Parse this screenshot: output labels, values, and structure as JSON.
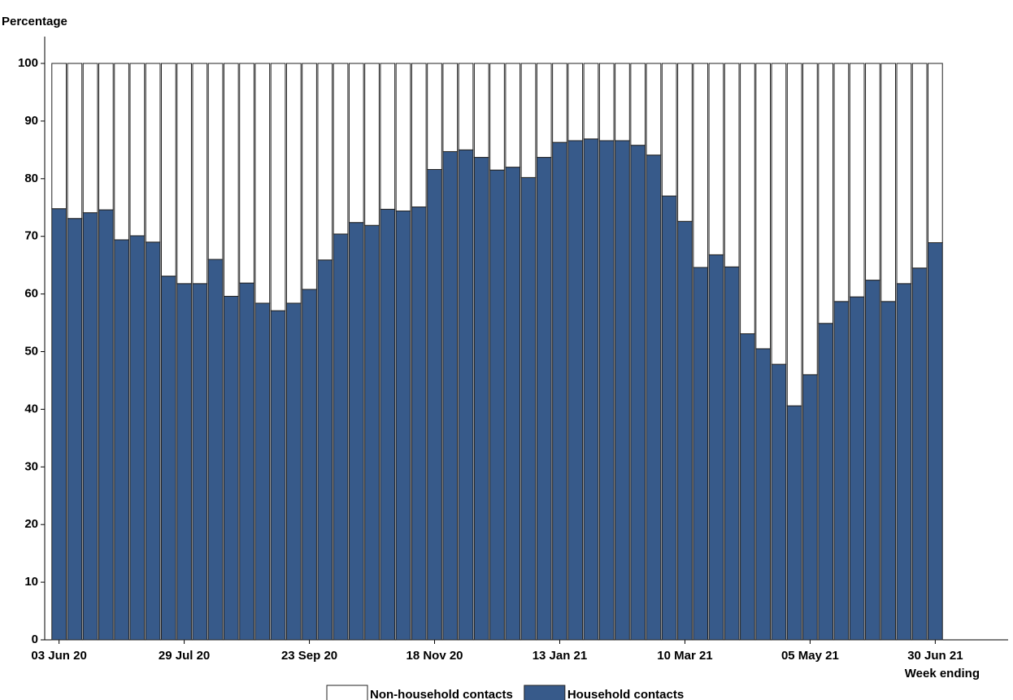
{
  "chart_data": {
    "type": "stacked_bar",
    "y_label": "Percentage",
    "x_label": "Week ending",
    "categories": [
      "03 Jun 20",
      null,
      null,
      null,
      null,
      null,
      null,
      null,
      "29 Jul 20",
      null,
      null,
      null,
      null,
      null,
      null,
      null,
      "23 Sep 20",
      null,
      null,
      null,
      null,
      null,
      null,
      null,
      "18 Nov 20",
      null,
      null,
      null,
      null,
      null,
      null,
      null,
      "13 Jan 21",
      null,
      null,
      null,
      null,
      null,
      null,
      null,
      "10 Mar 21",
      null,
      null,
      null,
      null,
      null,
      null,
      null,
      "05 May 21",
      null,
      null,
      null,
      null,
      null,
      null,
      null,
      "30 Jun 21"
    ],
    "series": [
      {
        "name": "Household contacts",
        "color": "#375a8a",
        "values": [
          74.8,
          73.1,
          74.1,
          74.6,
          69.4,
          70.1,
          69.0,
          63.1,
          61.8,
          61.8,
          66.0,
          59.6,
          61.9,
          58.4,
          57.1,
          58.4,
          60.8,
          65.9,
          70.4,
          72.4,
          71.9,
          74.7,
          74.4,
          75.1,
          81.6,
          84.7,
          85.0,
          83.7,
          81.5,
          82.0,
          80.2,
          83.7,
          86.3,
          86.6,
          86.9,
          86.6,
          86.6,
          85.8,
          84.1,
          77.0,
          72.6,
          64.6,
          66.8,
          64.7,
          53.1,
          50.5,
          47.8,
          40.6,
          46.0,
          54.9,
          58.7,
          59.5,
          62.4,
          58.7,
          61.8,
          64.5,
          68.9
        ]
      },
      {
        "name": "Non-household contacts",
        "color": "#ffffff",
        "values": [
          25.2,
          26.9,
          25.9,
          25.4,
          30.6,
          29.9,
          31.0,
          36.9,
          38.2,
          38.2,
          34.0,
          40.4,
          38.1,
          41.6,
          42.9,
          41.6,
          39.2,
          34.1,
          29.6,
          27.6,
          28.1,
          25.3,
          25.6,
          24.9,
          18.4,
          15.3,
          15.0,
          16.3,
          18.5,
          18.0,
          19.8,
          16.3,
          13.7,
          13.4,
          13.1,
          13.4,
          13.4,
          14.2,
          15.9,
          23.0,
          27.4,
          35.4,
          33.2,
          35.3,
          46.9,
          49.5,
          52.2,
          59.4,
          54.0,
          45.1,
          41.3,
          40.5,
          37.6,
          41.3,
          38.2,
          35.5,
          31.1
        ]
      }
    ],
    "ylim": [
      0,
      100
    ],
    "yticks": [
      0,
      10,
      20,
      30,
      40,
      50,
      60,
      70,
      80,
      90,
      100
    ],
    "grid": false
  }
}
